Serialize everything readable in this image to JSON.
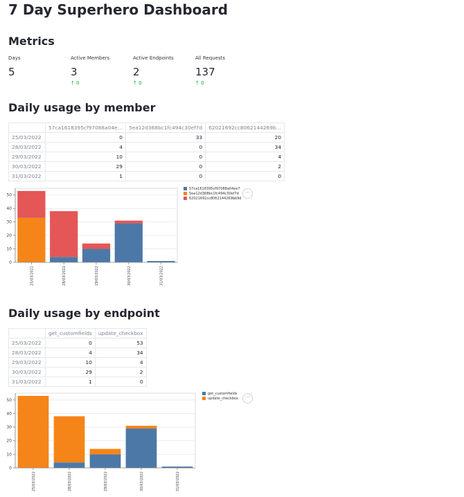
{
  "page_title": "7 Day Superhero Dashboard",
  "metrics": {
    "heading": "Metrics",
    "items": [
      {
        "label": "Days",
        "value": "5",
        "delta": ""
      },
      {
        "label": "Active Members",
        "value": "3",
        "delta": "↑ 0"
      },
      {
        "label": "Active Endpoints",
        "value": "2",
        "delta": "↑ 0"
      },
      {
        "label": "All Requests",
        "value": "137",
        "delta": "↑ 0"
      }
    ]
  },
  "member_section": {
    "heading": "Daily usage by member",
    "table": {
      "columns": [
        "57ca1618395cf97088a04e…",
        "5ea12d368bc1fc494c30ef7d",
        "62021692cc8062144269b…"
      ],
      "rows": [
        {
          "date": "25/03/2022",
          "values": [
            "0",
            "33",
            "20"
          ]
        },
        {
          "date": "28/03/2022",
          "values": [
            "4",
            "0",
            "34"
          ]
        },
        {
          "date": "29/03/2022",
          "values": [
            "10",
            "0",
            "4"
          ]
        },
        {
          "date": "30/03/2022",
          "values": [
            "29",
            "0",
            "2"
          ]
        },
        {
          "date": "31/03/2022",
          "values": [
            "1",
            "0",
            "0"
          ]
        }
      ]
    },
    "chart_data": {
      "type": "bar",
      "stacked": true,
      "categories": [
        "25/03/2022",
        "28/03/2022",
        "29/03/2022",
        "30/03/2022",
        "31/03/2022"
      ],
      "series": [
        {
          "name": "57ca1618395cf97088a04ee7",
          "color": "#4c78a8",
          "values": [
            0,
            4,
            10,
            29,
            1
          ]
        },
        {
          "name": "5ea12d368bc1fc494c30ef7d",
          "color": "#f58518",
          "values": [
            33,
            0,
            0,
            0,
            0
          ]
        },
        {
          "name": "62021692cc8062144269bb9d",
          "color": "#e45756",
          "values": [
            20,
            34,
            4,
            2,
            0
          ]
        }
      ],
      "y_ticks": [
        0,
        10,
        20,
        30,
        40,
        50
      ],
      "ylim": [
        0,
        55
      ]
    }
  },
  "endpoint_section": {
    "heading": "Daily usage by endpoint",
    "table": {
      "columns": [
        "get_customfields",
        "update_checkbox"
      ],
      "rows": [
        {
          "date": "25/03/2022",
          "values": [
            "0",
            "53"
          ]
        },
        {
          "date": "28/03/2022",
          "values": [
            "4",
            "34"
          ]
        },
        {
          "date": "29/03/2022",
          "values": [
            "10",
            "4"
          ]
        },
        {
          "date": "30/03/2022",
          "values": [
            "29",
            "2"
          ]
        },
        {
          "date": "31/03/2022",
          "values": [
            "1",
            "0"
          ]
        }
      ]
    },
    "chart_data": {
      "type": "bar",
      "stacked": true,
      "categories": [
        "25/03/2022",
        "28/03/2022",
        "29/03/2022",
        "30/03/2022",
        "31/03/2022"
      ],
      "series": [
        {
          "name": "get_customfields",
          "color": "#4c78a8",
          "values": [
            0,
            4,
            10,
            29,
            1
          ]
        },
        {
          "name": "update_checkbox",
          "color": "#f58518",
          "values": [
            53,
            34,
            4,
            2,
            0
          ]
        }
      ],
      "y_ticks": [
        0,
        10,
        20,
        30,
        40,
        50
      ],
      "ylim": [
        0,
        55
      ]
    }
  },
  "chart_menu_icon": "ellipsis-icon",
  "chart_menu_glyph": "⋯"
}
